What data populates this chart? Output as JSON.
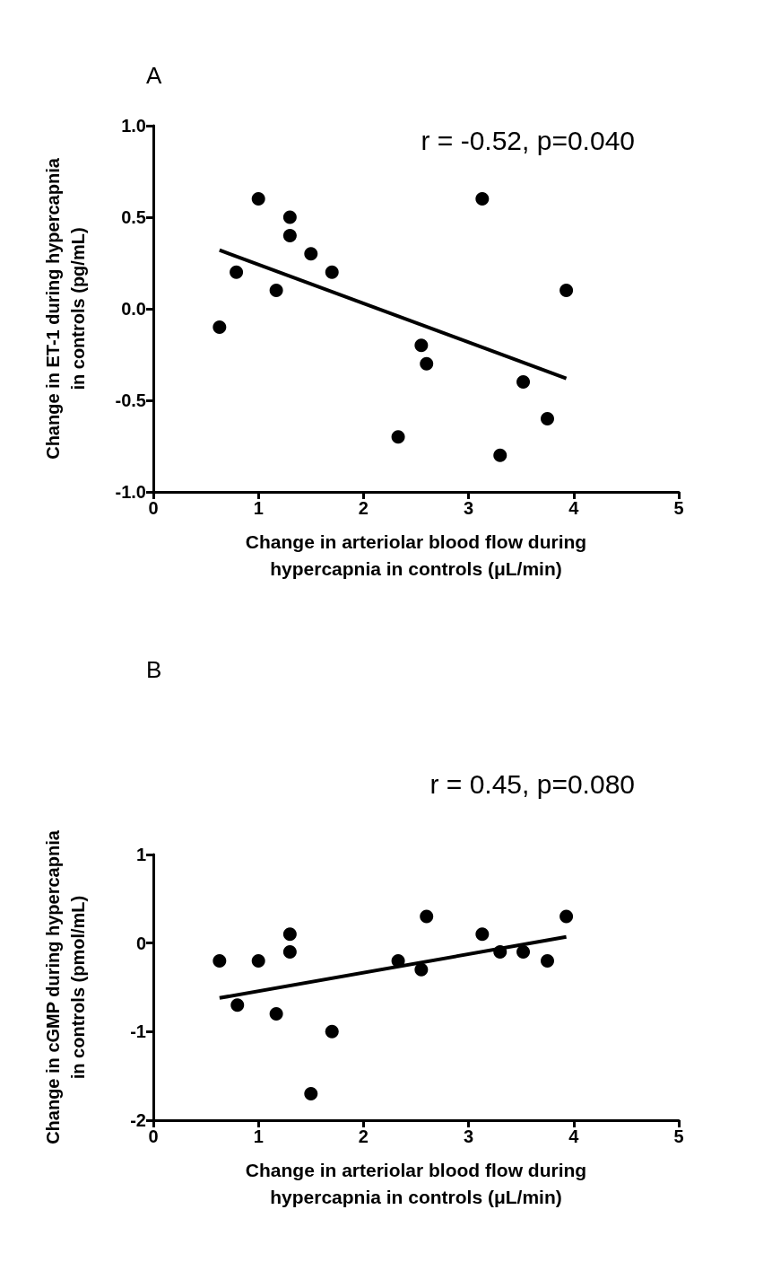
{
  "chart_data": [
    {
      "type": "scatter",
      "title": "A",
      "xlabel": "Change in arteriolar blood flow during\nhypercapnia in controls (μL/min)",
      "ylabel": "Change in ET-1 during hypercapnia\nin controls (pg/mL)",
      "annotations": [
        "r = -0.52, p=0.040"
      ],
      "xlim": [
        0,
        5
      ],
      "xticks": [
        0,
        1,
        2,
        3,
        4,
        5
      ],
      "ylim": [
        -1,
        1
      ],
      "yticks": [
        {
          "value": -1,
          "label": "-1.0"
        },
        {
          "value": -0.5,
          "label": "-0.5"
        },
        {
          "value": 0,
          "label": "0.0"
        },
        {
          "value": 0.5,
          "label": "0.5"
        },
        {
          "value": 1,
          "label": "1.0"
        }
      ],
      "grid": false,
      "series": [
        {
          "marker": "circle",
          "color": "#000000",
          "x": [
            0.63,
            0.79,
            1.0,
            1.17,
            1.3,
            1.3,
            1.5,
            1.7,
            2.33,
            2.55,
            2.6,
            3.13,
            3.3,
            3.52,
            3.75,
            3.93
          ],
          "values": [
            -0.1,
            0.2,
            0.6,
            0.1,
            0.5,
            0.4,
            0.3,
            0.2,
            -0.7,
            -0.2,
            -0.3,
            0.6,
            -0.8,
            -0.4,
            -0.6,
            0.1
          ]
        },
        {
          "type": "line",
          "marker": "none",
          "color": "#000000",
          "x": [
            0.63,
            3.93
          ],
          "values": [
            0.32,
            -0.38
          ]
        }
      ]
    },
    {
      "type": "scatter",
      "title": "B",
      "xlabel": "Change in arteriolar blood flow during\nhypercapnia in controls (μL/min)",
      "ylabel": "Change in cGMP during hypercapnia\nin controls (pmol/mL)",
      "annotations": [
        "r = 0.45, p=0.080"
      ],
      "xlim": [
        0,
        5
      ],
      "xticks": [
        0,
        1,
        2,
        3,
        4,
        5
      ],
      "ylim": [
        -2,
        1
      ],
      "yticks": [
        -2,
        -1,
        0,
        1
      ],
      "grid": false,
      "series": [
        {
          "marker": "circle",
          "color": "#000000",
          "x": [
            0.63,
            0.8,
            1.0,
            1.17,
            1.3,
            1.3,
            1.5,
            1.7,
            2.33,
            2.55,
            2.6,
            3.13,
            3.3,
            3.52,
            3.75,
            3.93
          ],
          "values": [
            -0.2,
            -0.7,
            -0.2,
            -0.8,
            0.1,
            -0.1,
            -1.7,
            -1.0,
            -0.2,
            -0.3,
            0.3,
            0.1,
            -0.1,
            -0.1,
            -0.2,
            0.3
          ]
        },
        {
          "type": "line",
          "marker": "none",
          "color": "#000000",
          "x": [
            0.63,
            3.93
          ],
          "values": [
            -0.62,
            0.07
          ]
        }
      ]
    }
  ]
}
